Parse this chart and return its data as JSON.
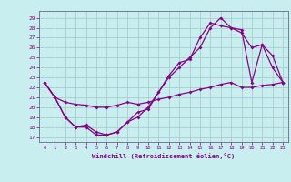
{
  "xlabel": "Windchill (Refroidissement éolien,°C)",
  "bg_color": "#c8eef0",
  "line_color": "#880088",
  "grid_color": "#aacccc",
  "spine_color": "#666688",
  "xlim": [
    -0.5,
    23.5
  ],
  "ylim": [
    16.5,
    29.7
  ],
  "yticks": [
    17,
    18,
    19,
    20,
    21,
    22,
    23,
    24,
    25,
    26,
    27,
    28,
    29
  ],
  "xticks": [
    0,
    1,
    2,
    3,
    4,
    5,
    6,
    7,
    8,
    9,
    10,
    11,
    12,
    13,
    14,
    15,
    16,
    17,
    18,
    19,
    20,
    21,
    22,
    23
  ],
  "line1_x": [
    0,
    1,
    2,
    3,
    4,
    5,
    6,
    7,
    8,
    9,
    10,
    11,
    12,
    13,
    14,
    15,
    16,
    17,
    18,
    19,
    20,
    21,
    22,
    23
  ],
  "line1_y": [
    22.5,
    21.0,
    20.5,
    20.3,
    20.2,
    20.0,
    20.0,
    20.2,
    20.5,
    20.3,
    20.5,
    20.8,
    21.0,
    21.3,
    21.5,
    21.8,
    22.0,
    22.3,
    22.5,
    22.0,
    22.0,
    22.2,
    22.3,
    22.5
  ],
  "line2_x": [
    0,
    1,
    2,
    3,
    4,
    5,
    6,
    7,
    8,
    9,
    10,
    11,
    12,
    13,
    14,
    15,
    16,
    17,
    18,
    19,
    20,
    21,
    22,
    23
  ],
  "line2_y": [
    22.5,
    21.0,
    19.0,
    18.0,
    18.0,
    17.2,
    17.2,
    17.5,
    18.5,
    19.0,
    20.0,
    21.5,
    23.0,
    24.0,
    25.0,
    26.0,
    28.0,
    29.0,
    28.0,
    27.5,
    26.0,
    26.3,
    24.0,
    22.5
  ],
  "line3_x": [
    0,
    1,
    2,
    3,
    4,
    5,
    6,
    7,
    8,
    9,
    10,
    11,
    12,
    13,
    14,
    15,
    16,
    17,
    18,
    19,
    20,
    21,
    22,
    23
  ],
  "line3_y": [
    22.5,
    21.0,
    19.0,
    18.0,
    18.2,
    17.5,
    17.2,
    17.5,
    18.5,
    19.5,
    19.8,
    21.5,
    23.2,
    24.5,
    24.8,
    27.0,
    28.5,
    28.2,
    28.0,
    27.8,
    22.5,
    26.3,
    25.2,
    22.5
  ]
}
